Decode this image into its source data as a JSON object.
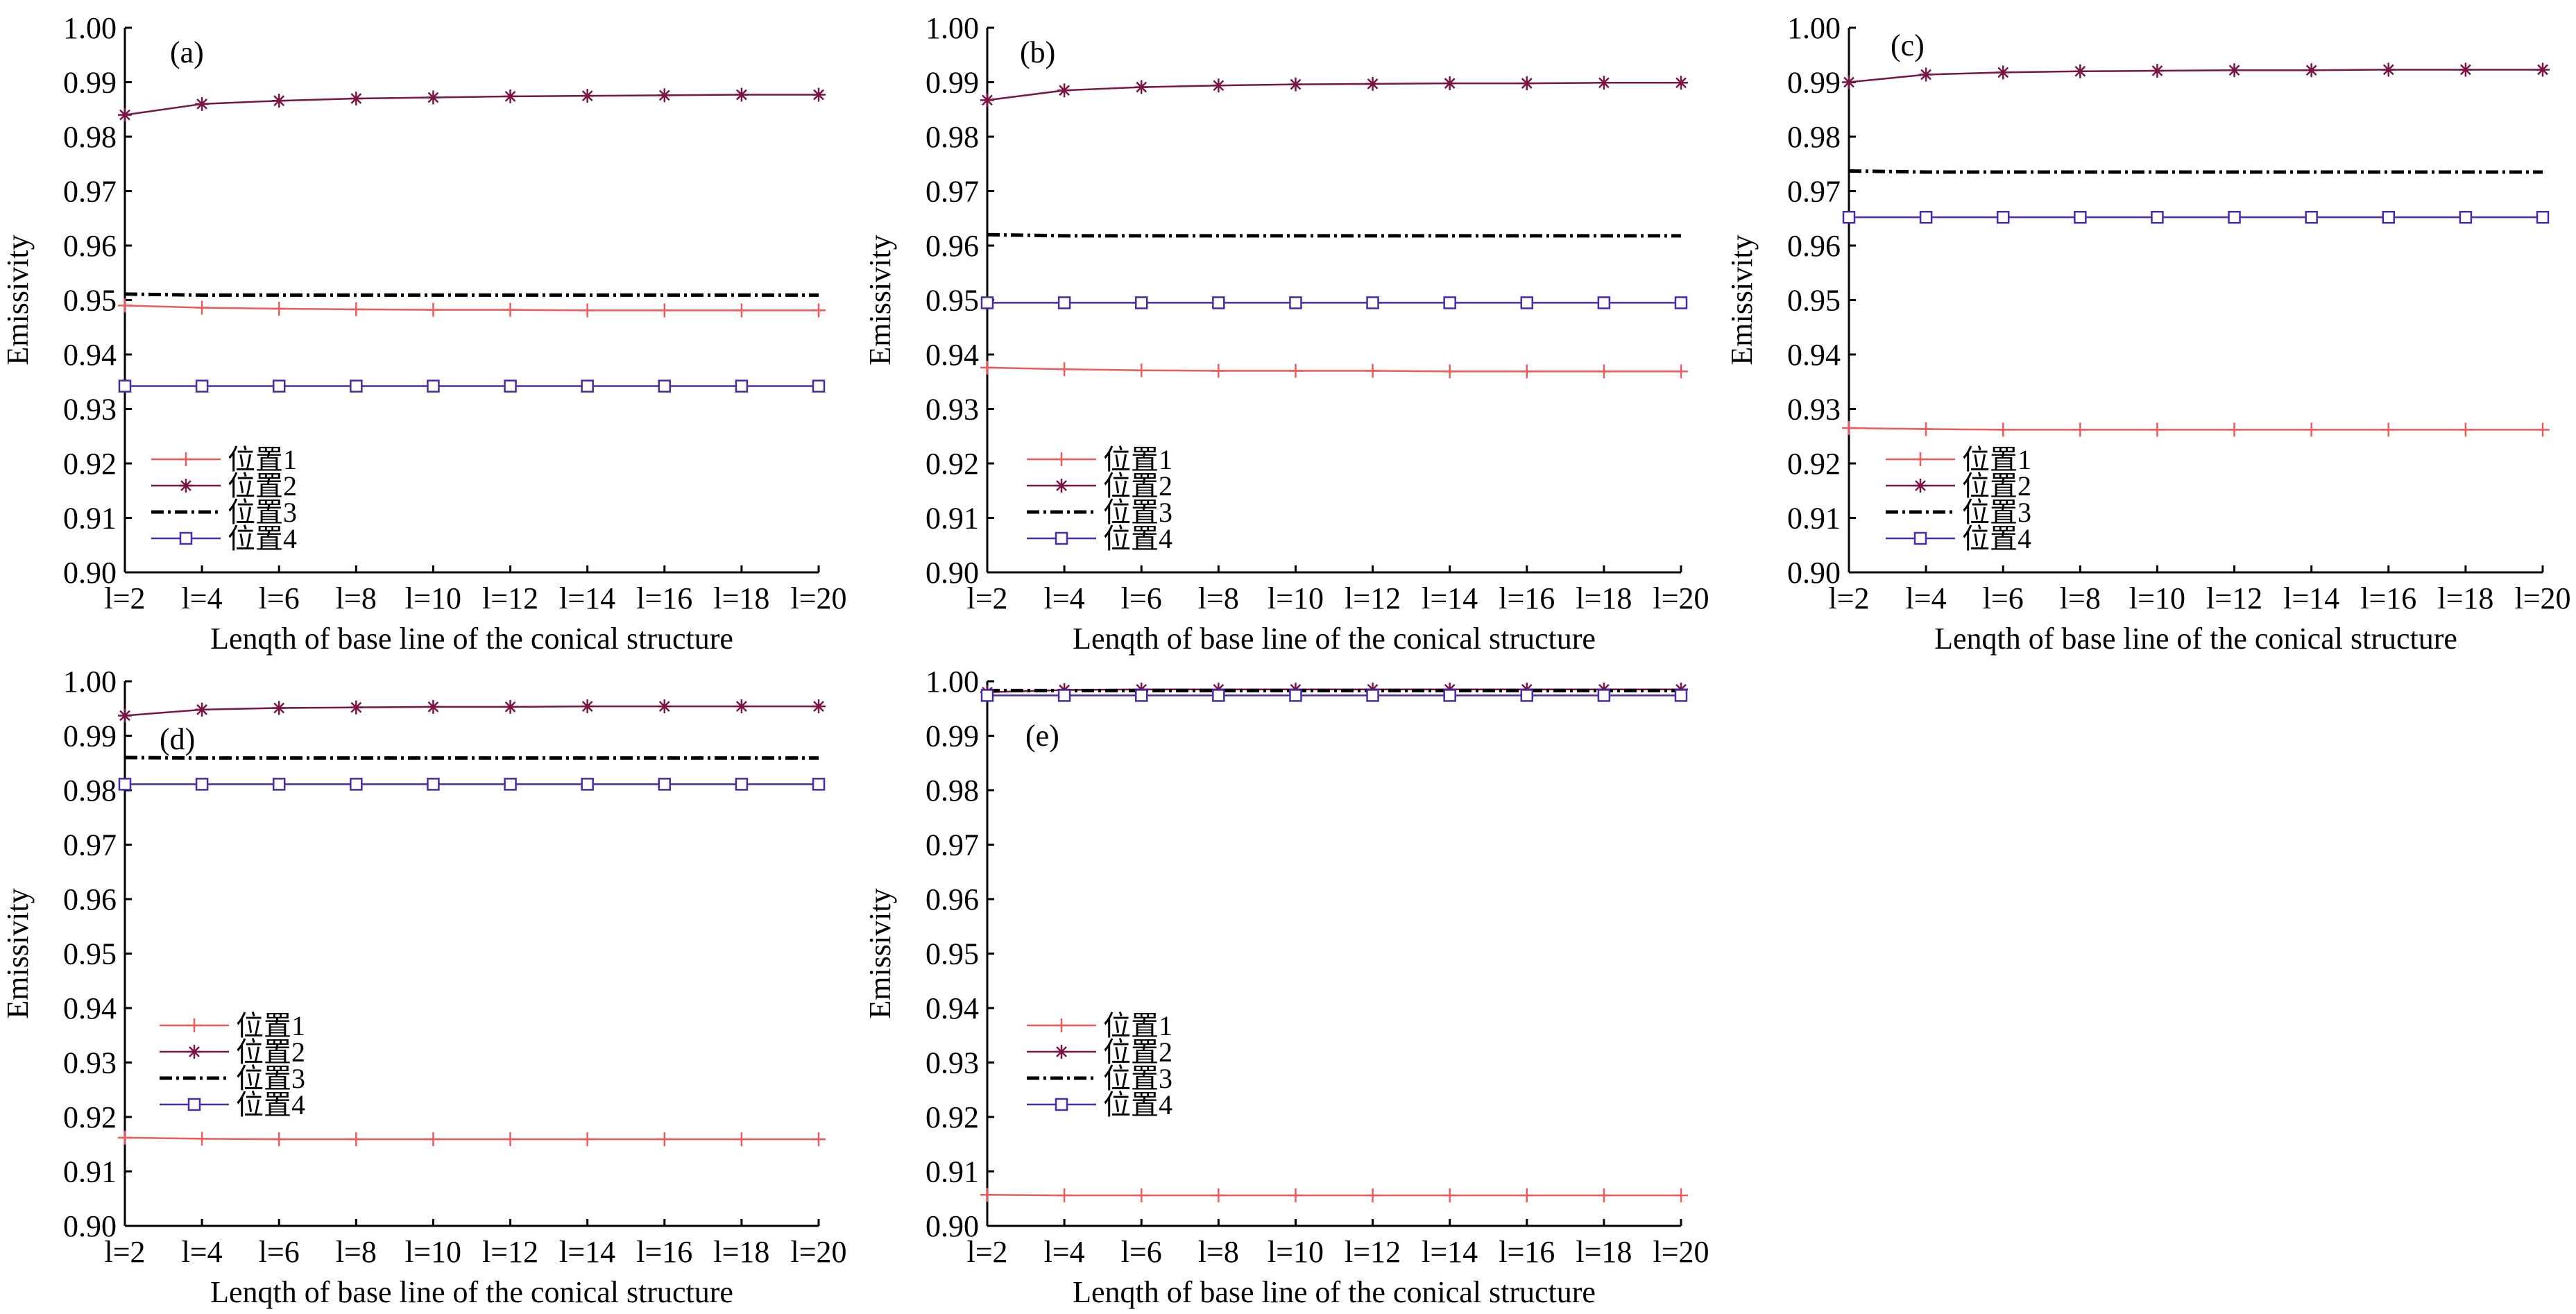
{
  "colors": {
    "series_1": "#ef5a5a",
    "series_2": "#7a1545",
    "series_3": "#000000",
    "series_4": "#4a2aa8"
  },
  "chart_data": [
    {
      "type": "line",
      "panel_label": "(a)",
      "xlabel": "Lenqth of base line of the conical structure",
      "ylabel": "Emissivity",
      "categories": [
        "l=2",
        "l=4",
        "l=6",
        "l=8",
        "l=10",
        "l=12",
        "l=14",
        "l=16",
        "l=18",
        "l=20"
      ],
      "ylim": [
        0.9,
        1.0
      ],
      "yticks": [
        "0.90",
        "0.91",
        "0.92",
        "0.93",
        "0.94",
        "0.95",
        "0.96",
        "0.97",
        "0.98",
        "0.99",
        "1.00"
      ],
      "legend_position": "lower-left",
      "series": [
        {
          "name": "位置1",
          "marker": "plus",
          "line": "solid",
          "values": [
            0.949,
            0.9486,
            0.9484,
            0.9483,
            0.9482,
            0.9482,
            0.9481,
            0.9481,
            0.9481,
            0.9481
          ]
        },
        {
          "name": "位置2",
          "marker": "asterisk",
          "line": "solid",
          "values": [
            0.984,
            0.986,
            0.9866,
            0.987,
            0.9872,
            0.9874,
            0.9875,
            0.9876,
            0.9877,
            0.9877
          ]
        },
        {
          "name": "位置3",
          "marker": "none",
          "line": "dashdot",
          "values": [
            0.9511,
            0.9509,
            0.9509,
            0.9509,
            0.9509,
            0.9509,
            0.9509,
            0.9509,
            0.9509,
            0.9509
          ]
        },
        {
          "name": "位置4",
          "marker": "square",
          "line": "solid",
          "values": [
            0.9342,
            0.9342,
            0.9342,
            0.9342,
            0.9342,
            0.9342,
            0.9342,
            0.9342,
            0.9342,
            0.9342
          ]
        }
      ]
    },
    {
      "type": "line",
      "panel_label": "(b)",
      "xlabel": "Lenqth of base line of the conical structure",
      "ylabel": "Emissivity",
      "categories": [
        "l=2",
        "l=4",
        "l=6",
        "l=8",
        "l=10",
        "l=12",
        "l=14",
        "l=16",
        "l=18",
        "l=20"
      ],
      "ylim": [
        0.9,
        1.0
      ],
      "yticks": [
        "0.90",
        "0.91",
        "0.92",
        "0.93",
        "0.94",
        "0.95",
        "0.96",
        "0.97",
        "0.98",
        "0.99",
        "1.00"
      ],
      "legend_position": "lower-left",
      "series": [
        {
          "name": "位置1",
          "marker": "plus",
          "line": "solid",
          "values": [
            0.9376,
            0.9373,
            0.9371,
            0.937,
            0.937,
            0.937,
            0.9369,
            0.9369,
            0.9369,
            0.9369
          ]
        },
        {
          "name": "位置2",
          "marker": "asterisk",
          "line": "solid",
          "values": [
            0.9867,
            0.9885,
            0.9891,
            0.9894,
            0.9896,
            0.9897,
            0.9898,
            0.9898,
            0.9899,
            0.9899
          ]
        },
        {
          "name": "位置3",
          "marker": "none",
          "line": "dashdot",
          "values": [
            0.962,
            0.9618,
            0.9618,
            0.9618,
            0.9618,
            0.9618,
            0.9618,
            0.9618,
            0.9618,
            0.9618
          ]
        },
        {
          "name": "位置4",
          "marker": "square",
          "line": "solid",
          "values": [
            0.9495,
            0.9495,
            0.9495,
            0.9495,
            0.9495,
            0.9495,
            0.9495,
            0.9495,
            0.9495,
            0.9495
          ]
        }
      ]
    },
    {
      "type": "line",
      "panel_label": "(c)",
      "xlabel": "Lenqth of base line of the conical structure",
      "ylabel": "Emissivity",
      "categories": [
        "l=2",
        "l=4",
        "l=6",
        "l=8",
        "l=10",
        "l=12",
        "l=14",
        "l=16",
        "l=18",
        "l=20"
      ],
      "ylim": [
        0.9,
        1.0
      ],
      "yticks": [
        "0.90",
        "0.91",
        "0.92",
        "0.93",
        "0.94",
        "0.95",
        "0.96",
        "0.97",
        "0.98",
        "0.99",
        "1.00"
      ],
      "legend_position": "lower-left",
      "series": [
        {
          "name": "位置1",
          "marker": "plus",
          "line": "solid",
          "values": [
            0.9265,
            0.9263,
            0.9262,
            0.9262,
            0.9262,
            0.9262,
            0.9262,
            0.9262,
            0.9262,
            0.9262
          ]
        },
        {
          "name": "位置2",
          "marker": "asterisk",
          "line": "solid",
          "values": [
            0.99,
            0.9914,
            0.9918,
            0.992,
            0.9921,
            0.9922,
            0.9922,
            0.9923,
            0.9923,
            0.9923
          ]
        },
        {
          "name": "位置3",
          "marker": "none",
          "line": "dashdot",
          "values": [
            0.9737,
            0.9735,
            0.9735,
            0.9735,
            0.9735,
            0.9735,
            0.9735,
            0.9735,
            0.9735,
            0.9735
          ]
        },
        {
          "name": "位置4",
          "marker": "square",
          "line": "solid",
          "values": [
            0.9652,
            0.9652,
            0.9652,
            0.9652,
            0.9652,
            0.9652,
            0.9652,
            0.9652,
            0.9652,
            0.9652
          ]
        }
      ]
    },
    {
      "type": "line",
      "panel_label": "(d)",
      "xlabel": "Lenqth of base line of the conical structure",
      "ylabel": "Emissivity",
      "categories": [
        "l=2",
        "l=4",
        "l=6",
        "l=8",
        "l=10",
        "l=12",
        "l=14",
        "l=16",
        "l=18",
        "l=20"
      ],
      "ylim": [
        0.9,
        1.0
      ],
      "yticks": [
        "0.90",
        "0.91",
        "0.92",
        "0.93",
        "0.94",
        "0.95",
        "0.96",
        "0.97",
        "0.98",
        "0.99",
        "1.00"
      ],
      "legend_position": "lower-left",
      "series": [
        {
          "name": "位置1",
          "marker": "plus",
          "line": "solid",
          "values": [
            0.9162,
            0.916,
            0.9159,
            0.9159,
            0.9159,
            0.9159,
            0.9159,
            0.9159,
            0.9159,
            0.9159
          ]
        },
        {
          "name": "位置2",
          "marker": "asterisk",
          "line": "solid",
          "values": [
            0.9937,
            0.9948,
            0.9951,
            0.9952,
            0.9953,
            0.9953,
            0.9954,
            0.9954,
            0.9954,
            0.9954
          ]
        },
        {
          "name": "位置3",
          "marker": "none",
          "line": "dashdot",
          "values": [
            0.986,
            0.9859,
            0.9859,
            0.9859,
            0.9859,
            0.9859,
            0.9859,
            0.9859,
            0.9859,
            0.9859
          ]
        },
        {
          "name": "位置4",
          "marker": "square",
          "line": "solid",
          "values": [
            0.9811,
            0.9811,
            0.9811,
            0.9811,
            0.9811,
            0.9811,
            0.9811,
            0.9811,
            0.9811,
            0.9811
          ]
        }
      ]
    },
    {
      "type": "line",
      "panel_label": "(e)",
      "xlabel": "Lenqth of base line of the conical structure",
      "ylabel": "Emissivity",
      "categories": [
        "l=2",
        "l=4",
        "l=6",
        "l=8",
        "l=10",
        "l=12",
        "l=14",
        "l=16",
        "l=18",
        "l=20"
      ],
      "ylim": [
        0.9,
        1.0
      ],
      "yticks": [
        "0.90",
        "0.91",
        "0.92",
        "0.93",
        "0.94",
        "0.95",
        "0.96",
        "0.97",
        "0.98",
        "0.99",
        "1.00"
      ],
      "legend_position": "center-left",
      "series": [
        {
          "name": "位置1",
          "marker": "plus",
          "line": "solid",
          "values": [
            0.9057,
            0.9056,
            0.9056,
            0.9056,
            0.9056,
            0.9056,
            0.9056,
            0.9056,
            0.9056,
            0.9056
          ]
        },
        {
          "name": "位置2",
          "marker": "asterisk",
          "line": "solid",
          "values": [
            0.998,
            0.9984,
            0.9985,
            0.9985,
            0.9985,
            0.9985,
            0.9985,
            0.9985,
            0.9985,
            0.9985
          ]
        },
        {
          "name": "位置3",
          "marker": "none",
          "line": "dashdot",
          "values": [
            0.9983,
            0.9983,
            0.9983,
            0.9983,
            0.9983,
            0.9983,
            0.9983,
            0.9983,
            0.9983,
            0.9983
          ]
        },
        {
          "name": "位置4",
          "marker": "square",
          "line": "solid",
          "values": [
            0.9974,
            0.9974,
            0.9974,
            0.9974,
            0.9974,
            0.9974,
            0.9974,
            0.9974,
            0.9974,
            0.9974
          ]
        }
      ]
    }
  ]
}
